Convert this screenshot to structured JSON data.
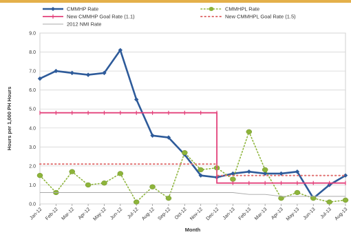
{
  "chart_data": {
    "type": "line",
    "title": "",
    "xlabel": "Month",
    "ylabel": "Hours per 1,000 PH Hours",
    "ylim": [
      0,
      9
    ],
    "yticks": [
      "0.0",
      "1.0",
      "2.0",
      "3.0",
      "4.0",
      "5.0",
      "6.0",
      "7.0",
      "8.0",
      "9.0"
    ],
    "categories": [
      "Jan-12",
      "Feb-12",
      "Mar-12",
      "Apr-12",
      "May-12",
      "Jun-12",
      "Jul-12",
      "Aug-12",
      "Sep-12",
      "Oct-12",
      "Nov-12",
      "Dec-12",
      "Jan-13",
      "Feb-13",
      "Mar-13",
      "Apr-13",
      "May-13",
      "Jun-13",
      "Jul-13",
      "Aug-13"
    ],
    "grid": true,
    "legend_position": "top",
    "series": [
      {
        "name": "CMMHP Rate",
        "color": "#2e5b9a",
        "style": "solid-diamond",
        "values": [
          6.6,
          7.0,
          6.9,
          6.8,
          6.9,
          8.1,
          5.5,
          3.6,
          3.5,
          2.6,
          1.5,
          1.4,
          1.6,
          1.7,
          1.6,
          1.6,
          1.7,
          0.3,
          1.0,
          1.5
        ]
      },
      {
        "name": "CMMHPL Rate",
        "color": "#8db43a",
        "style": "dotted-circle",
        "values": [
          1.5,
          0.6,
          1.7,
          1.0,
          1.1,
          1.6,
          0.1,
          0.9,
          0.3,
          2.7,
          1.8,
          1.9,
          1.3,
          3.8,
          1.8,
          0.3,
          0.6,
          0.3,
          0.1,
          0.2
        ]
      },
      {
        "name": "New CMMHP Goal Rate (1.1)",
        "color": "#e3407a",
        "style": "solid-tick",
        "values": [
          4.8,
          4.8,
          4.8,
          4.8,
          4.8,
          4.8,
          4.8,
          4.8,
          4.8,
          4.8,
          4.8,
          4.8,
          1.1,
          1.1,
          1.1,
          1.1,
          1.1,
          1.1,
          1.1,
          1.1
        ]
      },
      {
        "name": "New CMMHPL Goal Rate (1.5)",
        "color": "#e07070",
        "style": "dotted",
        "values": [
          2.1,
          2.1,
          2.1,
          2.1,
          2.1,
          2.1,
          2.1,
          2.1,
          2.1,
          2.1,
          2.1,
          2.1,
          1.5,
          1.5,
          1.5,
          1.5,
          1.5,
          1.5,
          1.5,
          1.5
        ]
      },
      {
        "name": "2012 NMI Rate",
        "color": "#a8a8a8",
        "style": "thin",
        "values": [
          0.6,
          0.6,
          0.6,
          0.6,
          0.6,
          0.6,
          0.6,
          0.6,
          0.6,
          0.6,
          0.6,
          0.6,
          0.6,
          0.5,
          0.5,
          0.4,
          0.4,
          0.4,
          0.4,
          0.4
        ]
      }
    ]
  }
}
